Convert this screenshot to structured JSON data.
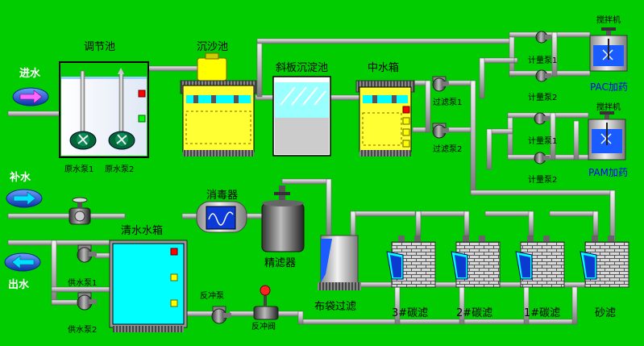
{
  "labels": {
    "inlet": "进水",
    "makeup": "补水",
    "outlet": "出水",
    "regulating_tank": "调节池",
    "raw_pump1": "原水泵1",
    "raw_pump2": "原水泵2",
    "grit_tank": "沉沙池",
    "settler": "斜板沉淀池",
    "mid_tank": "中水箱",
    "filter_pump1": "过滤泵1",
    "filter_pump2": "过滤泵2",
    "stirrer1": "搅拌机",
    "stirrer2": "搅拌机",
    "meter_pac1": "计量泵1",
    "meter_pac2": "计量泵2",
    "meter_pam1": "计量泵1",
    "meter_pam2": "计量泵2",
    "pac": "PAC加药",
    "pam": "PAM加药",
    "clean_tank": "清水水箱",
    "disinfector": "消毒器",
    "fine_filter": "精滤器",
    "bag_filter": "布袋过滤",
    "carbon3": "3#碳滤",
    "carbon2": "2#碳滤",
    "carbon1": "1#碳滤",
    "sand": "砂滤",
    "supply_pump1": "供水泵1",
    "supply_pump2": "供水泵2",
    "backwash_pump": "反冲泵",
    "backwash_valve": "反冲阀"
  },
  "colors": {
    "background": "#00cc00",
    "pipe": "#c8c8c8",
    "tank_yellow": "#ffff33",
    "water": "#00ffff",
    "indicator_red": "#ff0000",
    "indicator_green": "#00ff00",
    "indicator_yellow": "#ffff00"
  }
}
